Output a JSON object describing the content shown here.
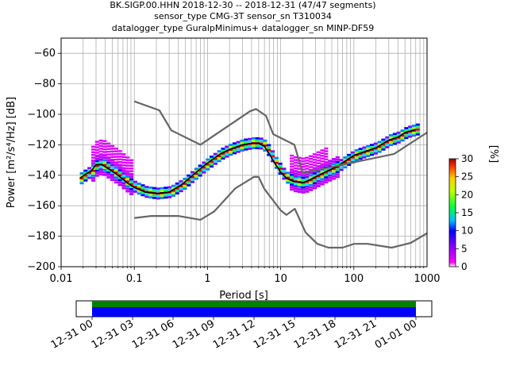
{
  "chart_data": [
    {
      "type": "heatmap",
      "title_lines": [
        "BK.SIGP.00.HHN   2018-12-30 -- 2018-12-31  (47/47 segments)",
        "sensor_type CMG-3T sensor_sn T310034",
        "datalogger_type GuralpMinimus+ datalogger_sn MINP-DF59"
      ],
      "xlabel": "Period [s]",
      "ylabel": "Power [m²/s⁴/Hz] [dB]",
      "xscale": "log",
      "xlim": [
        0.01,
        1000
      ],
      "ylim": [
        -200,
        -50
      ],
      "xticks": [
        {
          "value": 0.01,
          "label": "0.01"
        },
        {
          "value": 0.1,
          "label": "0.1"
        },
        {
          "value": 1,
          "label": "1"
        },
        {
          "value": 10,
          "label": "10"
        },
        {
          "value": 100,
          "label": "100"
        },
        {
          "value": 1000,
          "label": "1000"
        }
      ],
      "yticks": [
        -200,
        -180,
        -160,
        -140,
        -120,
        -100,
        -80,
        -60
      ],
      "grid": true,
      "colorbar": {
        "label": "[%]",
        "min": 0,
        "max": 30,
        "ticks": [
          0,
          5,
          10,
          15,
          20,
          25,
          30
        ]
      },
      "series": [
        {
          "role": "mode",
          "color": "#000000",
          "points": [
            [
              0.018,
              -142
            ],
            [
              0.022,
              -139
            ],
            [
              0.026,
              -137
            ],
            [
              0.03,
              -133
            ],
            [
              0.036,
              -133
            ],
            [
              0.045,
              -136
            ],
            [
              0.06,
              -140
            ],
            [
              0.08,
              -145
            ],
            [
              0.1,
              -148
            ],
            [
              0.14,
              -151
            ],
            [
              0.2,
              -152
            ],
            [
              0.3,
              -151
            ],
            [
              0.45,
              -146
            ],
            [
              0.7,
              -138
            ],
            [
              1,
              -132
            ],
            [
              1.5,
              -126
            ],
            [
              2,
              -123
            ],
            [
              3,
              -120
            ],
            [
              4,
              -119
            ],
            [
              5,
              -119
            ],
            [
              6,
              -121
            ],
            [
              7,
              -126
            ],
            [
              8,
              -131
            ],
            [
              10,
              -138
            ],
            [
              12,
              -142
            ],
            [
              15,
              -144
            ],
            [
              20,
              -145
            ],
            [
              25,
              -143
            ],
            [
              30,
              -141
            ],
            [
              40,
              -138
            ],
            [
              60,
              -134
            ],
            [
              80,
              -130
            ],
            [
              100,
              -127
            ],
            [
              150,
              -124
            ],
            [
              200,
              -122
            ],
            [
              300,
              -117
            ],
            [
              400,
              -115
            ],
            [
              500,
              -112
            ],
            [
              700,
              -110
            ]
          ]
        },
        {
          "role": "high noise model",
          "color": "#666666",
          "points": [
            [
              0.1,
              -91.5
            ],
            [
              0.22,
              -97.4
            ],
            [
              0.32,
              -110.5
            ],
            [
              0.8,
              -120
            ],
            [
              3.8,
              -98
            ],
            [
              4.6,
              -96.5
            ],
            [
              6.3,
              -101
            ],
            [
              7.9,
              -113
            ],
            [
              15.4,
              -120
            ],
            [
              20,
              -138.5
            ],
            [
              354.8,
              -126
            ],
            [
              1000,
              -112
            ]
          ]
        },
        {
          "role": "low noise model",
          "color": "#666666",
          "points": [
            [
              0.1,
              -168
            ],
            [
              0.17,
              -166.7
            ],
            [
              0.4,
              -166.7
            ],
            [
              0.8,
              -169.2
            ],
            [
              1.24,
              -163.7
            ],
            [
              2.4,
              -148.6
            ],
            [
              4.3,
              -141.1
            ],
            [
              5,
              -141.1
            ],
            [
              6,
              -149
            ],
            [
              10,
              -163
            ],
            [
              12,
              -166
            ],
            [
              15.6,
              -162
            ],
            [
              21.9,
              -177.5
            ],
            [
              31.6,
              -185
            ],
            [
              45,
              -187.5
            ],
            [
              70,
              -187.5
            ],
            [
              101,
              -185
            ],
            [
              154,
              -185
            ],
            [
              328,
              -187.5
            ],
            [
              600,
              -184.4
            ],
            [
              1000,
              -178
            ]
          ]
        }
      ]
    },
    {
      "type": "timeline",
      "tick_labels": [
        "12-31 00",
        "12-31 03",
        "12-31 06",
        "12-31 09",
        "12-31 12",
        "12-31 15",
        "12-31 18",
        "12-31 21",
        "01-01 00"
      ],
      "bars": [
        {
          "name": "data availability",
          "color": "#008000"
        },
        {
          "name": "psd segments",
          "color": "#0000ff"
        }
      ]
    }
  ]
}
